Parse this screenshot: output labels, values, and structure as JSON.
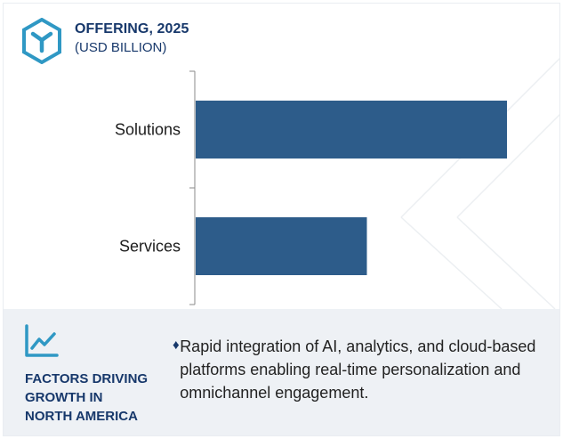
{
  "header": {
    "title": "OFFERING, 2025",
    "subtitle": "(USD BILLION)"
  },
  "colors": {
    "bar": "#2d5c8a",
    "brand": "#17386b",
    "logo": "#2f98c4",
    "panel_bg": "#eef1f5"
  },
  "chart_data": {
    "type": "bar",
    "orientation": "horizontal",
    "title": "OFFERING, 2025",
    "subtitle": "(USD BILLION)",
    "categories": [
      "Solutions",
      "Services"
    ],
    "values": [
      100,
      55
    ],
    "value_scale": "relative (no axis values printed)",
    "xlabel": "",
    "ylabel": "",
    "grid": false,
    "legend": "none"
  },
  "factors": {
    "icon": "trend-chart-icon",
    "title_lines": [
      "FACTORS DRIVING",
      "GROWTH IN",
      "NORTH AMERICA"
    ],
    "items": [
      "Rapid integration of AI, analytics, and cloud-based platforms enabling real-time personalization and omnichannel engagement."
    ]
  }
}
